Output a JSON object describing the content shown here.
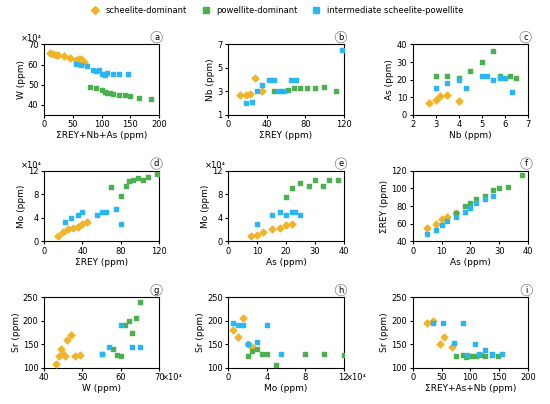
{
  "chart_data": [
    {
      "type": "scatter",
      "xlabel": "ΣREY+Nb+As (ppm)",
      "ylabel": "W (ppm)",
      "xlim": [
        0,
        200
      ],
      "ylim": [
        35,
        70
      ],
      "xticks": [
        0,
        50,
        100,
        150,
        200
      ],
      "yticks": [
        40,
        50,
        60,
        70
      ],
      "legend": "upper center",
      "annotations": [
        {
          "text": "×10⁴",
          "axis": "y"
        },
        {
          "text": "a"
        }
      ],
      "series": [
        {
          "name": "scheelite-dominant",
          "color": "#f0b429",
          "marker": "diamond",
          "x": [
            10,
            15,
            20,
            25,
            35,
            45,
            55,
            60,
            65,
            70
          ],
          "values": [
            65.5,
            65.2,
            64.8,
            64.5,
            64.0,
            63.0,
            62.0,
            62.5,
            62.5,
            61.5
          ]
        },
        {
          "name": "powellite-dominant",
          "color": "#4caf50",
          "marker": "square",
          "x": [
            80,
            90,
            100,
            105,
            110,
            115,
            120,
            130,
            140,
            150,
            165,
            185
          ],
          "values": [
            49.0,
            48.5,
            47.5,
            46.5,
            46.0,
            46.0,
            45.5,
            45.0,
            45.0,
            44.5,
            43.5,
            43.0
          ]
        },
        {
          "name": "intermediate scheelite-powellite",
          "color": "#29b6f6",
          "marker": "square",
          "x": [
            55,
            65,
            75,
            85,
            90,
            95,
            100,
            105,
            110,
            120,
            130,
            145
          ],
          "values": [
            60.5,
            60.0,
            59.5,
            57.5,
            57.0,
            57.5,
            55.5,
            55.0,
            56.0,
            55.5,
            55.5,
            55.5
          ]
        }
      ]
    },
    {
      "type": "scatter",
      "xlabel": "ΣREY (ppm)",
      "ylabel": "Nb (ppm)",
      "xlim": [
        0,
        120
      ],
      "ylim": [
        1.0,
        7.0
      ],
      "xticks": [
        0,
        40,
        80,
        120
      ],
      "yticks": [
        1,
        3,
        5,
        7
      ],
      "annotations": [
        {
          "text": "b"
        }
      ],
      "series": [
        {
          "color": "#f0b429",
          "marker": "diamond",
          "x": [
            12,
            18,
            22,
            28,
            35
          ],
          "values": [
            2.7,
            2.7,
            2.8,
            4.1,
            3.0
          ]
        },
        {
          "color": "#4caf50",
          "marker": "square",
          "x": [
            48,
            55,
            62,
            68,
            75,
            82,
            90,
            100,
            112
          ],
          "values": [
            3.0,
            3.0,
            3.1,
            3.3,
            3.3,
            3.3,
            3.3,
            3.4,
            3.0
          ]
        },
        {
          "color": "#29b6f6",
          "marker": "square",
          "x": [
            18,
            25,
            30,
            35,
            42,
            48,
            52,
            58,
            65,
            70,
            118
          ],
          "values": [
            2.0,
            2.1,
            3.0,
            3.5,
            4.0,
            4.0,
            3.0,
            3.0,
            4.0,
            4.0,
            6.5
          ]
        }
      ]
    },
    {
      "type": "scatter",
      "xlabel": "Nb (ppm)",
      "ylabel": "As (ppm)",
      "xlim": [
        2.0,
        7.0
      ],
      "ylim": [
        0,
        40
      ],
      "xticks": [
        2,
        3,
        4,
        5,
        6,
        7
      ],
      "yticks": [
        0,
        10,
        20,
        30,
        40
      ],
      "annotations": [
        {
          "text": "c"
        }
      ],
      "series": [
        {
          "color": "#f0b429",
          "marker": "diamond",
          "x": [
            2.7,
            3.0,
            3.2,
            3.5,
            4.0
          ],
          "values": [
            6.5,
            8.5,
            10.5,
            11.0,
            8.0
          ]
        },
        {
          "color": "#4caf50",
          "marker": "square",
          "x": [
            3.0,
            3.5,
            4.0,
            4.5,
            5.0,
            5.5,
            5.8,
            6.2,
            6.5
          ],
          "values": [
            22,
            22,
            21,
            25,
            30,
            36,
            22,
            22,
            21
          ]
        },
        {
          "color": "#29b6f6",
          "marker": "square",
          "x": [
            3.0,
            3.5,
            4.0,
            4.3,
            5.0,
            5.2,
            5.5,
            5.8,
            6.0,
            6.3
          ],
          "values": [
            15,
            18,
            20,
            15,
            22,
            22,
            20,
            21,
            21,
            13
          ]
        }
      ]
    },
    {
      "type": "scatter",
      "xlabel": "ΣREY (ppm)",
      "ylabel": "Mo (ppm)",
      "xlim": [
        0,
        120
      ],
      "ylim": [
        0,
        12
      ],
      "xticks": [
        0,
        40,
        80,
        120
      ],
      "yticks": [
        0,
        4,
        8,
        12
      ],
      "annotations": [
        {
          "text": "×10⁴",
          "axis": "y"
        },
        {
          "text": "d"
        }
      ],
      "series": [
        {
          "color": "#f0b429",
          "marker": "diamond",
          "x": [
            15,
            20,
            25,
            30,
            35,
            40,
            45
          ],
          "values": [
            0.8,
            1.5,
            2.0,
            2.2,
            2.5,
            3.0,
            3.2
          ]
        },
        {
          "color": "#4caf50",
          "marker": "square",
          "x": [
            70,
            80,
            85,
            88,
            93,
            98,
            103,
            108,
            118
          ],
          "values": [
            9.3,
            7.8,
            9.5,
            10.3,
            10.5,
            10.8,
            10.5,
            11.0,
            11.5
          ]
        },
        {
          "color": "#29b6f6",
          "marker": "square",
          "x": [
            22,
            28,
            35,
            40,
            55,
            60,
            65,
            75,
            80
          ],
          "values": [
            3.3,
            4.0,
            4.5,
            5.0,
            4.5,
            5.0,
            5.0,
            5.5,
            3.0
          ]
        }
      ]
    },
    {
      "type": "scatter",
      "xlabel": "As (ppm)",
      "ylabel": "Mo (ppm)",
      "xlim": [
        0,
        40
      ],
      "ylim": [
        0,
        12
      ],
      "xticks": [
        0,
        10,
        20,
        30,
        40
      ],
      "yticks": [
        0,
        4,
        8,
        12
      ],
      "annotations": [
        {
          "text": "×10⁴",
          "axis": "y"
        },
        {
          "text": "e"
        }
      ],
      "series": [
        {
          "color": "#f0b429",
          "marker": "diamond",
          "x": [
            8,
            10,
            12,
            15,
            18,
            20,
            22
          ],
          "values": [
            0.8,
            1.0,
            1.5,
            2.0,
            2.2,
            2.7,
            3.0
          ]
        },
        {
          "color": "#4caf50",
          "marker": "square",
          "x": [
            20,
            22,
            25,
            28,
            30,
            33,
            35,
            38
          ],
          "values": [
            7.5,
            9.0,
            10.0,
            9.5,
            10.5,
            9.5,
            10.5,
            10.5
          ]
        },
        {
          "color": "#29b6f6",
          "marker": "square",
          "x": [
            10,
            15,
            18,
            20,
            22,
            23,
            25
          ],
          "values": [
            3.0,
            4.5,
            5.0,
            4.5,
            5.0,
            5.0,
            4.5
          ]
        }
      ]
    },
    {
      "type": "scatter",
      "xlabel": "As (ppm)",
      "ylabel": "ΣREY (ppm)",
      "xlim": [
        0,
        40
      ],
      "ylim": [
        40,
        120
      ],
      "xticks": [
        0,
        10,
        20,
        30,
        40
      ],
      "yticks": [
        40,
        60,
        80,
        100,
        120
      ],
      "annotations": [
        {
          "text": "f"
        }
      ],
      "series": [
        {
          "color": "#f0b429",
          "marker": "diamond",
          "x": [
            5,
            8,
            10,
            12,
            15
          ],
          "values": [
            55,
            60,
            65,
            68,
            72
          ]
        },
        {
          "color": "#4caf50",
          "marker": "square",
          "x": [
            15,
            18,
            20,
            22,
            25,
            28,
            30,
            33,
            38
          ],
          "values": [
            72,
            80,
            83,
            88,
            92,
            98,
            100,
            102,
            115
          ]
        },
        {
          "color": "#29b6f6",
          "marker": "square",
          "x": [
            5,
            8,
            10,
            12,
            15,
            18,
            20,
            22,
            25,
            28
          ],
          "values": [
            48,
            53,
            58,
            63,
            68,
            73,
            78,
            83,
            88,
            92
          ]
        }
      ]
    },
    {
      "type": "scatter",
      "xlabel": "W (ppm)",
      "ylabel": "Sr (ppm)",
      "xlim": [
        40,
        70
      ],
      "ylim": [
        100,
        250
      ],
      "xticks": [
        40,
        50,
        60,
        70
      ],
      "yticks": [
        100,
        150,
        200,
        250
      ],
      "annotations": [
        {
          "text": "×10⁴",
          "axis": "x"
        },
        {
          "text": "g"
        }
      ],
      "series": [
        {
          "color": "#f0b429",
          "marker": "diamond",
          "x": [
            43,
            44,
            44.5,
            45,
            45.5,
            46,
            47,
            48,
            49.5
          ],
          "values": [
            108,
            125,
            140,
            130,
            125,
            160,
            170,
            125,
            127
          ]
        },
        {
          "color": "#4caf50",
          "marker": "square",
          "x": [
            55,
            58,
            59,
            60,
            61,
            62,
            63,
            64,
            65
          ],
          "values": [
            130,
            140,
            127,
            125,
            190,
            200,
            175,
            205,
            240
          ]
        },
        {
          "color": "#29b6f6",
          "marker": "square",
          "x": [
            55,
            57,
            60,
            63,
            65
          ],
          "values": [
            130,
            145,
            190,
            145,
            145
          ]
        }
      ]
    },
    {
      "type": "scatter",
      "xlabel": "Mo (ppm)",
      "ylabel": "Sr (ppm)",
      "xlim": [
        0,
        12
      ],
      "ylim": [
        100,
        250
      ],
      "xticks": [
        0,
        4,
        8,
        12
      ],
      "yticks": [
        100,
        150,
        200,
        250
      ],
      "annotations": [
        {
          "text": "×10⁴",
          "axis": "x"
        },
        {
          "text": "h"
        }
      ],
      "series": [
        {
          "color": "#f0b429",
          "marker": "diamond",
          "x": [
            0.5,
            1.0,
            1.5,
            2.0,
            2.5
          ],
          "values": [
            180,
            165,
            205,
            150,
            145
          ]
        },
        {
          "color": "#4caf50",
          "marker": "square",
          "x": [
            2.0,
            2.5,
            3.0,
            3.5,
            4.0,
            5.0,
            8.0,
            10.0,
            12.0
          ],
          "values": [
            125,
            135,
            140,
            130,
            130,
            105,
            130,
            130,
            128
          ]
        },
        {
          "color": "#29b6f6",
          "marker": "square",
          "x": [
            0.5,
            1.0,
            1.5,
            2.0,
            3.0,
            4.0,
            5.5
          ],
          "values": [
            195,
            192,
            190,
            150,
            155,
            192,
            130
          ]
        }
      ]
    },
    {
      "type": "scatter",
      "xlabel": "ΣREY+As+Nb (ppm)",
      "ylabel": "Sr (ppm)",
      "xlim": [
        0,
        200
      ],
      "ylim": [
        100,
        250
      ],
      "xticks": [
        0,
        50,
        100,
        150,
        200
      ],
      "yticks": [
        100,
        150,
        200,
        250
      ],
      "annotations": [
        {
          "text": "i"
        }
      ],
      "series": [
        {
          "color": "#f0b429",
          "marker": "diamond",
          "x": [
            25,
            35,
            48,
            55,
            68
          ],
          "values": [
            195,
            200,
            150,
            165,
            145
          ]
        },
        {
          "color": "#4caf50",
          "marker": "square",
          "x": [
            75,
            88,
            93,
            98,
            103,
            110,
            118,
            125,
            138,
            148
          ],
          "values": [
            125,
            128,
            122,
            125,
            125,
            125,
            128,
            125,
            128,
            125
          ]
        },
        {
          "color": "#29b6f6",
          "marker": "square",
          "x": [
            35,
            52,
            72,
            88,
            95,
            108,
            115,
            125,
            138,
            155
          ],
          "values": [
            195,
            195,
            152,
            195,
            128,
            150,
            130,
            138,
            130,
            130
          ]
        }
      ]
    }
  ]
}
